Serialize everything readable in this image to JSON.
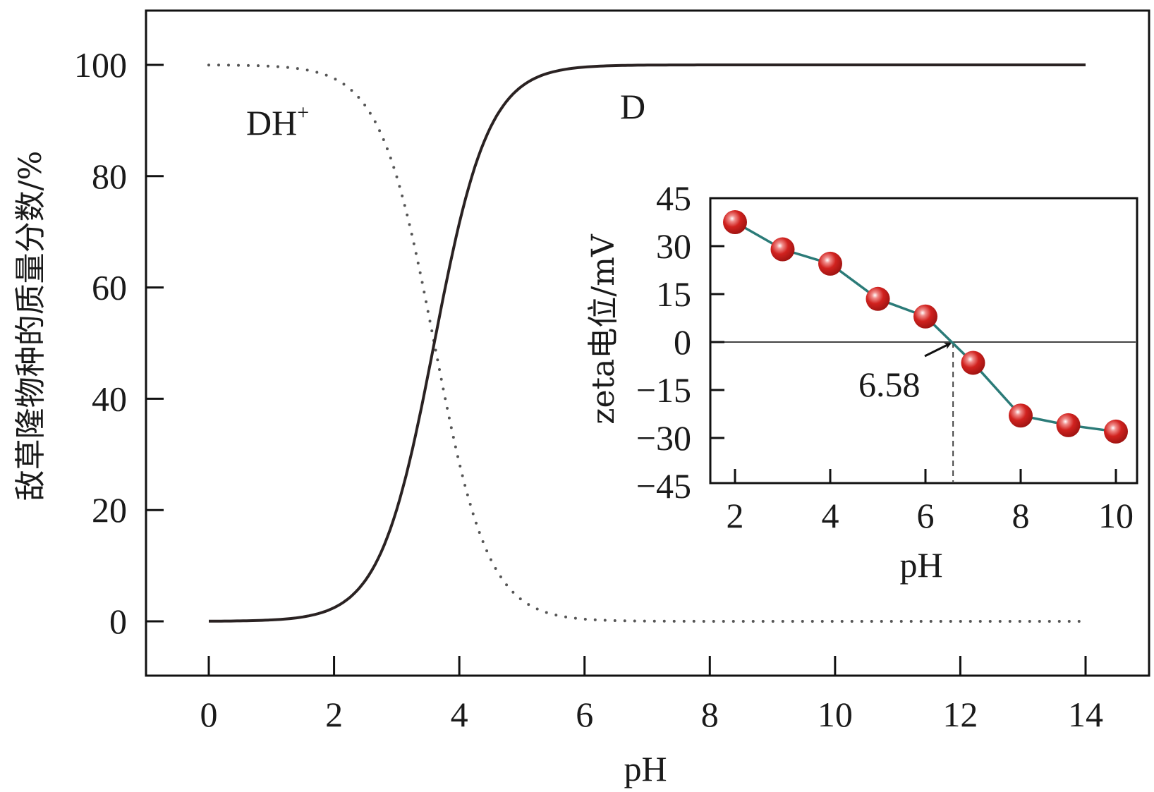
{
  "chart_data": [
    {
      "type": "line",
      "title": "",
      "xlabel": "pH",
      "ylabel": "敌草隆物种的质量分数/%",
      "xlim": [
        -1,
        15.5
      ],
      "ylim": [
        -10,
        110
      ],
      "xticks": [
        "0",
        "2",
        "4",
        "6",
        "8",
        "10",
        "12",
        "14"
      ],
      "yticks": [
        "0",
        "20",
        "40",
        "60",
        "80",
        "100"
      ],
      "grid": false,
      "pKa": 3.6,
      "x": [
        0,
        0.5,
        1,
        1.5,
        2,
        2.5,
        3,
        3.5,
        4,
        4.5,
        5,
        5.5,
        6,
        6.5,
        7,
        8,
        9,
        10,
        11,
        12,
        13,
        14
      ],
      "series": [
        {
          "name": "DH+",
          "label": "DH",
          "label_sup": "+",
          "style": "dotted",
          "values": [
            100,
            99.9,
            99.7,
            99.2,
            97.5,
            92.6,
            79.9,
            55.7,
            28.5,
            11.2,
            3.8,
            1.2,
            0.4,
            0.1,
            0,
            0,
            0,
            0,
            0,
            0,
            0,
            0
          ]
        },
        {
          "name": "D",
          "label": "D",
          "style": "solid",
          "values": [
            0,
            0.1,
            0.3,
            0.8,
            2.5,
            7.4,
            20.1,
            44.3,
            71.5,
            88.8,
            96.2,
            98.8,
            99.6,
            99.9,
            100,
            100,
            100,
            100,
            100,
            100,
            100,
            100
          ]
        }
      ]
    },
    {
      "type": "line",
      "title": "",
      "xlabel": "pH",
      "ylabel": "zeta电位/mV",
      "xlim": [
        1.5,
        10.5
      ],
      "ylim": [
        -45,
        45
      ],
      "xticks": [
        "2",
        "4",
        "6",
        "8",
        "10"
      ],
      "yticks": [
        "45",
        "30",
        "15",
        "0",
        "−15",
        "−30",
        "−45"
      ],
      "grid": false,
      "x": [
        2,
        3,
        4,
        5,
        6,
        7,
        8,
        9,
        10
      ],
      "values": [
        37.5,
        29,
        24.5,
        13.5,
        8,
        -6.5,
        -23,
        -26,
        -28
      ],
      "annotation": {
        "text": "6.58",
        "x": 6.58,
        "y": 0
      },
      "colors": {
        "line": "#2b7b78",
        "marker": "#c8201e"
      }
    }
  ]
}
